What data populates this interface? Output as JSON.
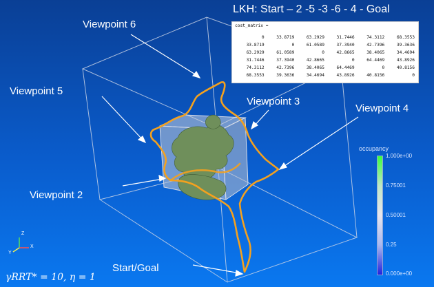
{
  "title": "LKH: Start – 2 -5 -3 -6 - 4 - Goal",
  "viewpoints": {
    "vp6": "Viewpoint 6",
    "vp5": "Viewpoint 5",
    "vp3": "Viewpoint 3",
    "vp4": "Viewpoint 4",
    "vp2": "Viewpoint 2",
    "start_goal": "Start/Goal"
  },
  "cost_matrix": {
    "header": "cost_matrix =",
    "rows": [
      [
        "0",
        "33.8719",
        "63.2929",
        "31.7446",
        "74.3112",
        "68.3553"
      ],
      [
        "33.8719",
        "0",
        "61.0589",
        "37.3940",
        "42.7396",
        "39.3636"
      ],
      [
        "63.2929",
        "61.0589",
        "0",
        "42.8665",
        "38.4065",
        "34.4694"
      ],
      [
        "31.7446",
        "37.3940",
        "42.8665",
        "0",
        "64.4469",
        "43.8926"
      ],
      [
        "74.3112",
        "42.7396",
        "38.4065",
        "64.4469",
        "0",
        "40.8156"
      ],
      [
        "68.3553",
        "39.3636",
        "34.4694",
        "43.8926",
        "40.8156",
        "0"
      ]
    ]
  },
  "colorbar": {
    "title": "occupancy",
    "ticks": [
      "1.000e+00",
      "0.75001",
      "0.50001",
      "0.25",
      "0.000e+00"
    ],
    "colors": {
      "high": "#3cff3c",
      "mid": "#e6e6ee",
      "low": "#2222dd"
    }
  },
  "axes": {
    "x": "X",
    "y": "Y",
    "z": "Z"
  },
  "formula": "γRRT* = 10, η = 1",
  "colors": {
    "path": "#f4a11e",
    "octree": "#6f8f5b",
    "box": "#c9d3e6"
  }
}
